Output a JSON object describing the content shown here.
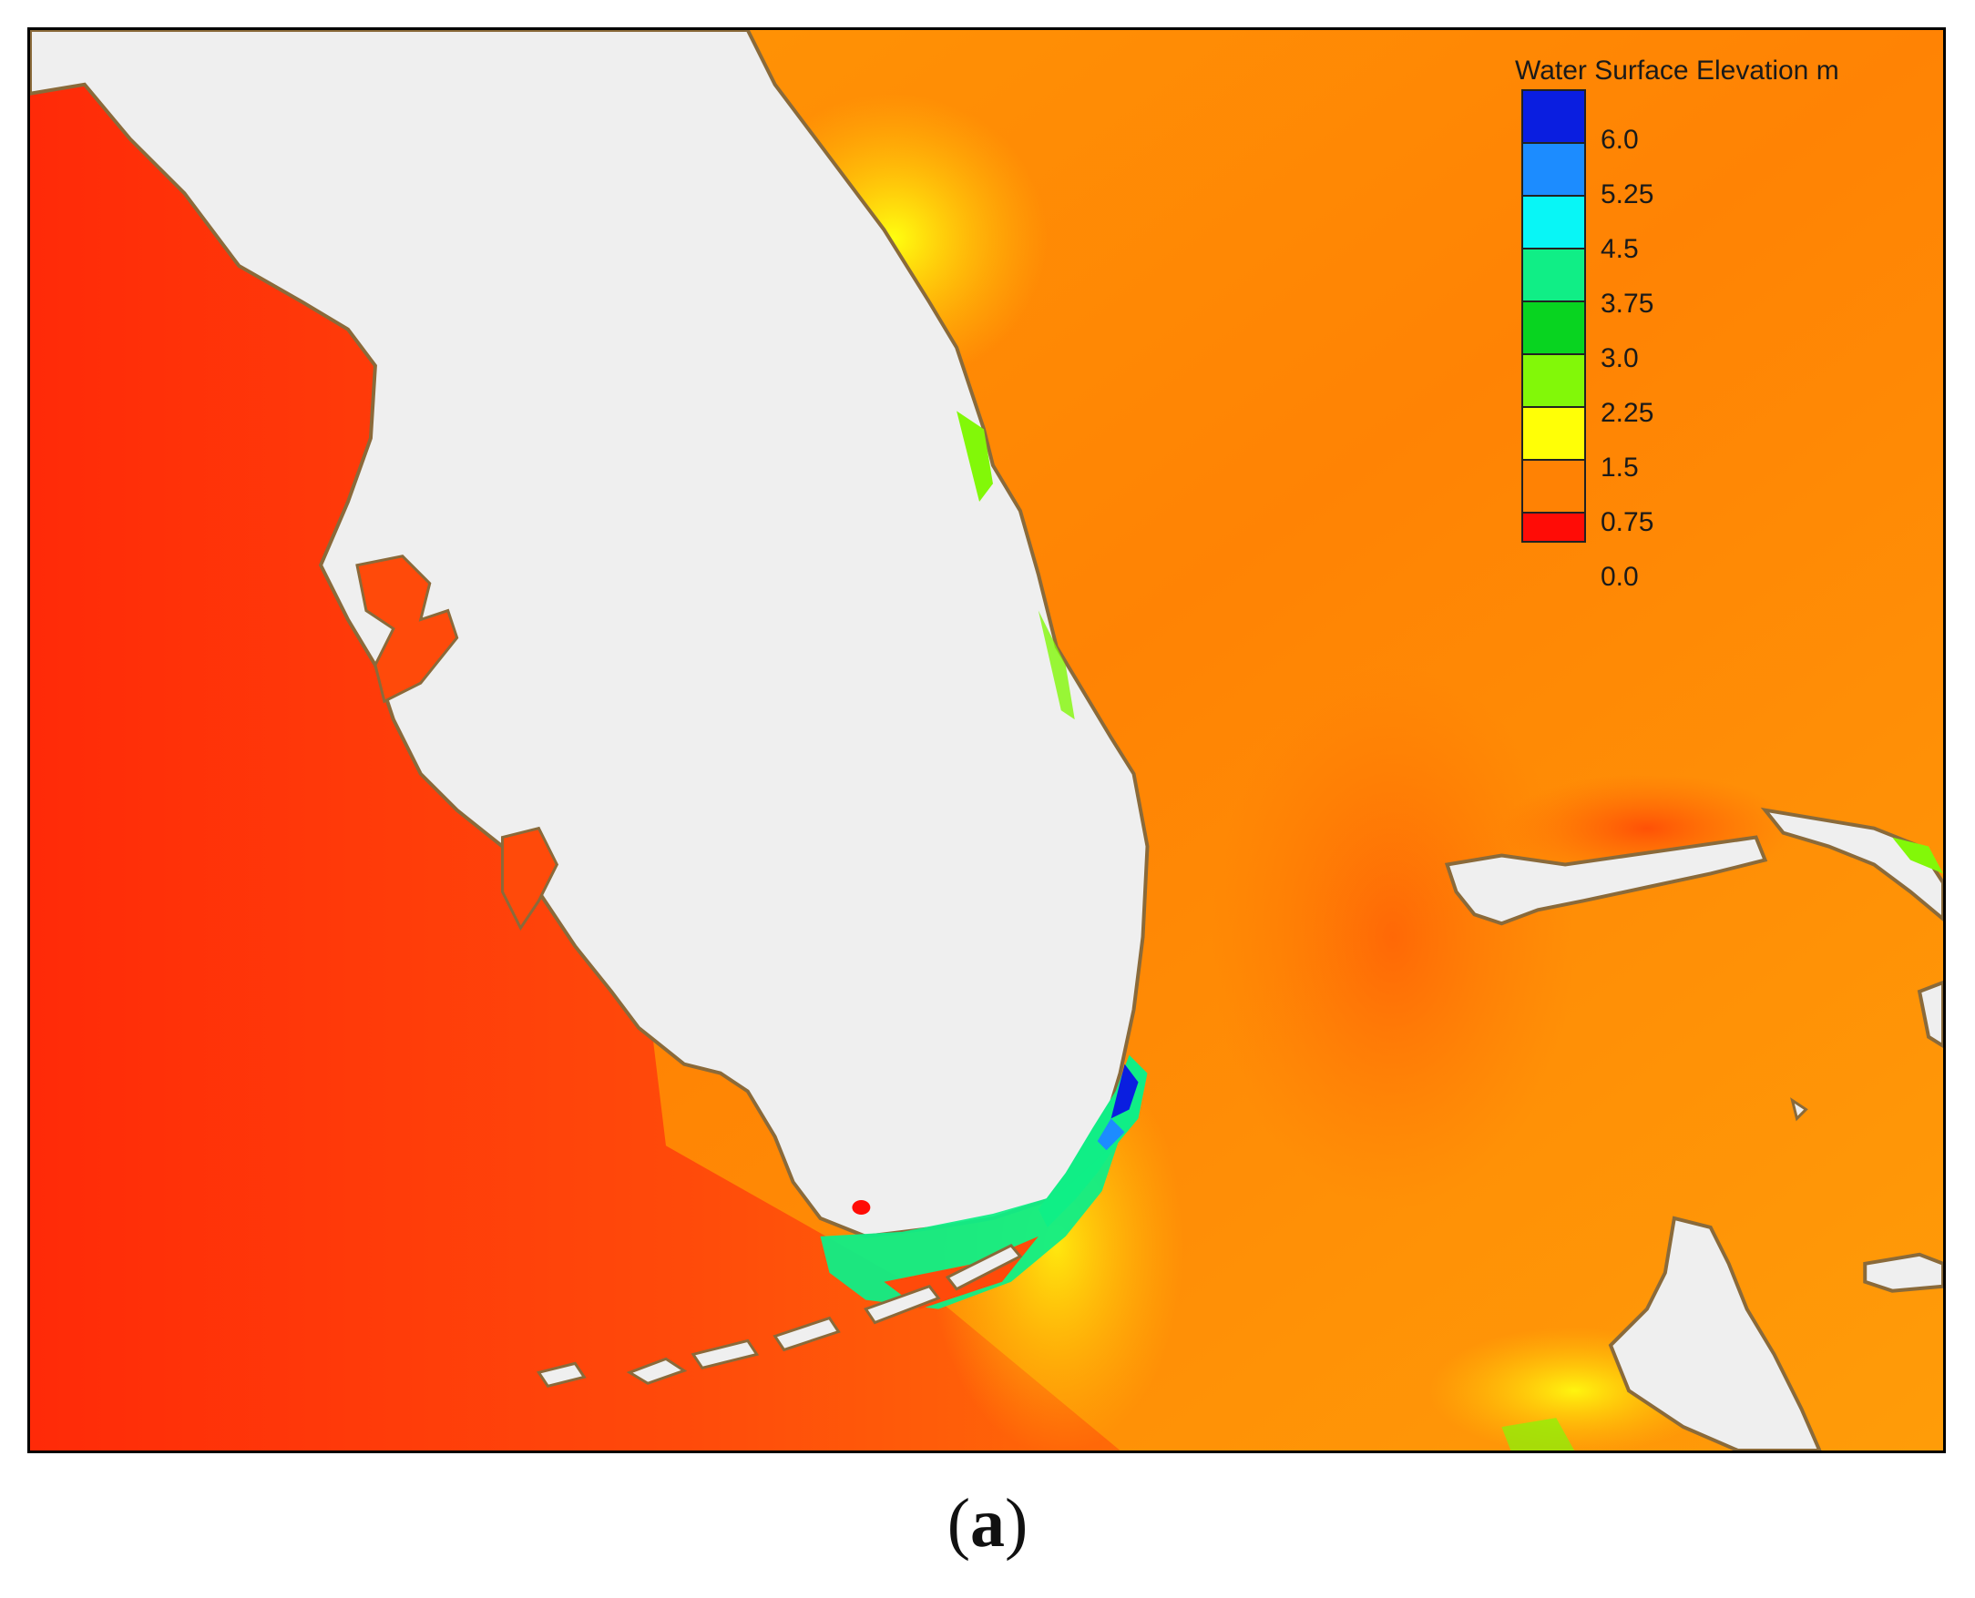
{
  "legend": {
    "title": "Water Surface Elevation m",
    "items": [
      {
        "label": "6.0",
        "color": "#0a1ee0"
      },
      {
        "label": "5.25",
        "color": "#1c8cff"
      },
      {
        "label": "4.5",
        "color": "#08f6f6"
      },
      {
        "label": "3.75",
        "color": "#10ee86"
      },
      {
        "label": "3.0",
        "color": "#08d420"
      },
      {
        "label": "2.25",
        "color": "#82f808"
      },
      {
        "label": "1.5",
        "color": "#ffff06"
      },
      {
        "label": "0.75",
        "color": "#ff8204"
      },
      {
        "label": "0.0",
        "color": "#ff0c06"
      }
    ]
  },
  "caption": {
    "open": "(",
    "letter": "a",
    "close": ")"
  },
  "colors": {
    "land": "#efefef",
    "coastline": "#8a6a3a",
    "gulf": "#ff3d0a",
    "atlantic": "#ff8a04"
  }
}
